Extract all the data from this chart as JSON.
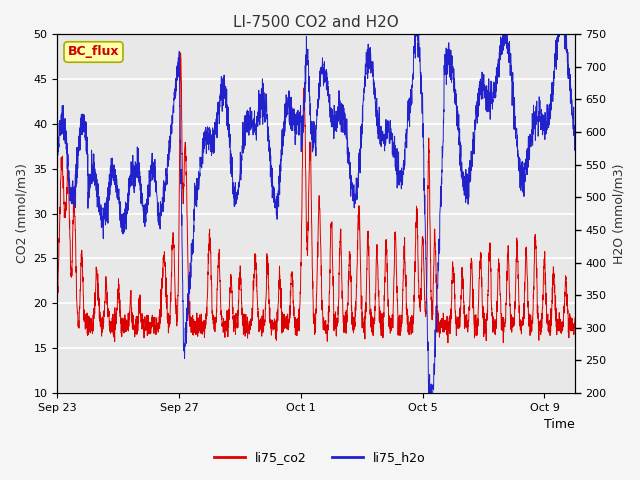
{
  "title": "LI-7500 CO2 and H2O",
  "xlabel": "Time",
  "ylabel_left": "CO2 (mmol/m3)",
  "ylabel_right": "H2O (mmol/m3)",
  "ylim_left": [
    10,
    50
  ],
  "ylim_right": [
    200,
    750
  ],
  "yticks_left": [
    10,
    15,
    20,
    25,
    30,
    35,
    40,
    45,
    50
  ],
  "yticks_right": [
    200,
    250,
    300,
    350,
    400,
    450,
    500,
    550,
    600,
    650,
    700,
    750
  ],
  "xtick_labels": [
    "Sep 23",
    "Sep 27",
    "Oct 1",
    "Oct 5",
    "Oct 9"
  ],
  "xtick_positions": [
    0,
    4,
    8,
    12,
    16
  ],
  "color_co2": "#dd0000",
  "color_h2o": "#2222cc",
  "legend_label_co2": "li75_co2",
  "legend_label_h2o": "li75_h2o",
  "annotation_text": "BC_flux",
  "annotation_color": "#cc0000",
  "annotation_bg": "#ffffaa",
  "annotation_border": "#aaaa00",
  "plot_bg_color": "#e8e8e8",
  "fig_bg_color": "#f5f5f5",
  "grid_color": "#ffffff",
  "title_color": "#333333",
  "xlim": [
    0,
    17
  ]
}
